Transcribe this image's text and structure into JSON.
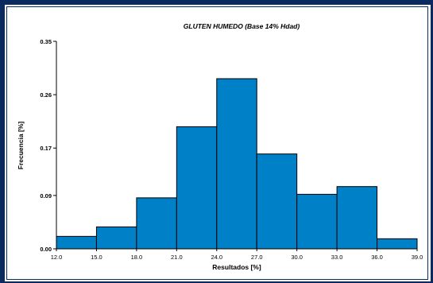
{
  "chart_data": {
    "type": "bar",
    "title": "GLUTEN HUMEDO (Base 14% Hdad)",
    "xlabel": "Resultados [%]",
    "ylabel": "Frecuencia [%]",
    "bin_edges": [
      12.0,
      15.0,
      18.0,
      21.0,
      24.0,
      27.0,
      30.0,
      33.0,
      36.0,
      39.0
    ],
    "x_tick_labels": [
      "12.0",
      "15.0",
      "18.0",
      "21.0",
      "24.0",
      "27.0",
      "30.0",
      "33.0",
      "36.0",
      "39.0"
    ],
    "values": [
      0.021,
      0.037,
      0.086,
      0.206,
      0.287,
      0.16,
      0.092,
      0.105,
      0.017
    ],
    "y_ticks": [
      0.0,
      0.09,
      0.17,
      0.26,
      0.35
    ],
    "y_tick_labels": [
      "0.00",
      "0.09",
      "0.17",
      "0.26",
      "0.35"
    ],
    "ylim": [
      0,
      0.35
    ],
    "xlim": [
      12.0,
      39.0
    ],
    "bar_color": "#0080c6",
    "grid": false
  }
}
